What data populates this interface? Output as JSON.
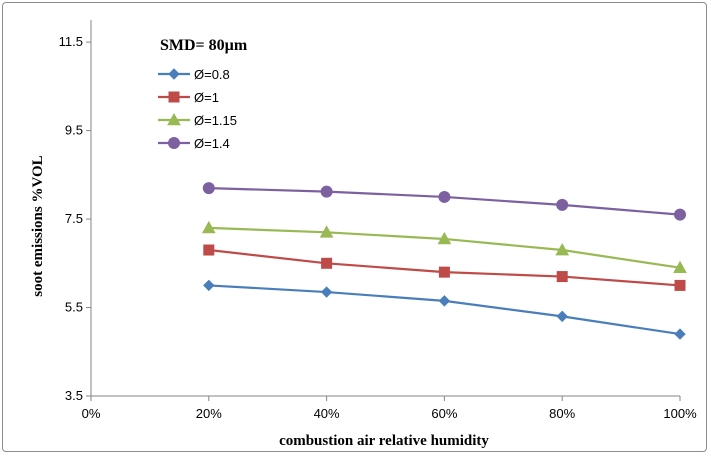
{
  "chart_data": {
    "type": "line",
    "title": "",
    "annotation": "SMD= 80µm",
    "xlabel": "combustion  air relative humidity",
    "ylabel": "soot emissions %VOL",
    "x_categories": [
      "0%",
      "20%",
      "40%",
      "60%",
      "80%",
      "100%"
    ],
    "x_values": [
      0,
      20,
      40,
      60,
      80,
      100
    ],
    "xlim": [
      0,
      100
    ],
    "ylim": [
      3.5,
      12.0
    ],
    "y_ticks": [
      3.5,
      5.5,
      7.5,
      9.5,
      11.5
    ],
    "y_tick_labels": [
      "3.5",
      "5.5",
      "7.5",
      "9.5",
      "11.5"
    ],
    "grid": false,
    "legend_position": "top-left",
    "series": [
      {
        "name": "Ø=0.8",
        "color": "#4a7ebb",
        "marker": "diamond",
        "x": [
          20,
          40,
          60,
          80,
          100
        ],
        "values": [
          6.0,
          5.85,
          5.65,
          5.3,
          4.9
        ]
      },
      {
        "name": "Ø=1",
        "color": "#be4b48",
        "marker": "square",
        "x": [
          20,
          40,
          60,
          80,
          100
        ],
        "values": [
          6.8,
          6.5,
          6.3,
          6.2,
          6.0
        ]
      },
      {
        "name": "Ø=1.15",
        "color": "#98b954",
        "marker": "triangle",
        "x": [
          20,
          40,
          60,
          80,
          100
        ],
        "values": [
          7.3,
          7.2,
          7.05,
          6.8,
          6.4
        ]
      },
      {
        "name": "Ø=1.4",
        "color": "#7d60a0",
        "marker": "circle",
        "x": [
          20,
          40,
          60,
          80,
          100
        ],
        "values": [
          8.2,
          8.12,
          8.0,
          7.82,
          7.6
        ]
      }
    ]
  }
}
